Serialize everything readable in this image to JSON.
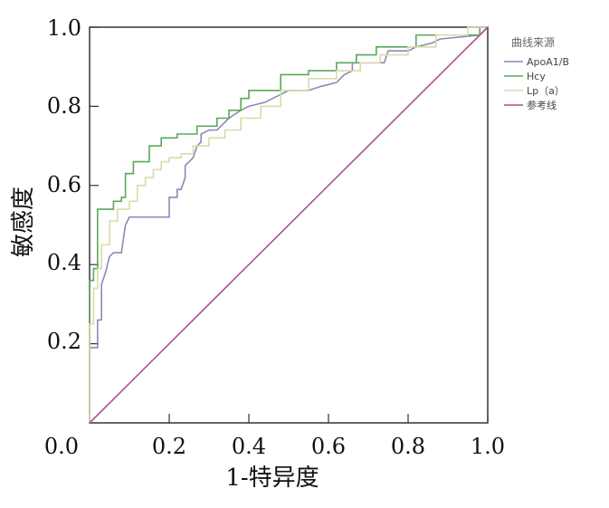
{
  "chart_data": {
    "type": "line",
    "title": "",
    "xlabel": "1-特异度",
    "ylabel": "敏感度",
    "xlim": [
      0,
      1
    ],
    "ylim": [
      0,
      1
    ],
    "x_ticks": [
      "0.0",
      "0.2",
      "0.4",
      "0.6",
      "0.8",
      "1.0"
    ],
    "y_ticks": [
      "0.2",
      "0.4",
      "0.6",
      "0.8",
      "1.0"
    ],
    "grid": false,
    "legend": {
      "title": "曲线来源",
      "placement": "right-top"
    },
    "series": [
      {
        "name": "ApoA1/B",
        "color": "#8a8ab8",
        "x": [
          0,
          0,
          0.02,
          0.02,
          0.03,
          0.03,
          0.04,
          0.05,
          0.06,
          0.08,
          0.09,
          0.1,
          0.2,
          0.2,
          0.22,
          0.22,
          0.23,
          0.24,
          0.24,
          0.25,
          0.26,
          0.27,
          0.28,
          0.28,
          0.3,
          0.32,
          0.35,
          0.38,
          0.4,
          0.44,
          0.46,
          0.48,
          0.5,
          0.55,
          0.58,
          0.62,
          0.64,
          0.66,
          0.66,
          0.74,
          0.75,
          0.8,
          0.82,
          0.86,
          0.88,
          0.98,
          1.0
        ],
        "y": [
          0,
          0.19,
          0.19,
          0.26,
          0.26,
          0.35,
          0.38,
          0.42,
          0.43,
          0.43,
          0.5,
          0.52,
          0.52,
          0.57,
          0.57,
          0.59,
          0.59,
          0.62,
          0.65,
          0.66,
          0.67,
          0.7,
          0.71,
          0.73,
          0.74,
          0.74,
          0.77,
          0.79,
          0.8,
          0.81,
          0.82,
          0.83,
          0.84,
          0.84,
          0.85,
          0.86,
          0.88,
          0.89,
          0.91,
          0.91,
          0.94,
          0.94,
          0.95,
          0.96,
          0.97,
          0.98,
          1.0
        ]
      },
      {
        "name": "Hcy",
        "color": "#5aa85a",
        "x": [
          0,
          0,
          0.01,
          0.01,
          0.02,
          0.02,
          0.03,
          0.03,
          0.06,
          0.06,
          0.08,
          0.08,
          0.09,
          0.09,
          0.11,
          0.11,
          0.15,
          0.15,
          0.18,
          0.18,
          0.22,
          0.22,
          0.27,
          0.27,
          0.32,
          0.32,
          0.35,
          0.35,
          0.38,
          0.38,
          0.4,
          0.4,
          0.48,
          0.48,
          0.55,
          0.55,
          0.62,
          0.62,
          0.67,
          0.67,
          0.72,
          0.72,
          0.82,
          0.82,
          0.86,
          0.86,
          0.98,
          0.98,
          1.0
        ],
        "y": [
          0,
          0.36,
          0.36,
          0.39,
          0.39,
          0.54,
          0.54,
          0.54,
          0.54,
          0.56,
          0.56,
          0.57,
          0.57,
          0.63,
          0.63,
          0.66,
          0.66,
          0.7,
          0.7,
          0.72,
          0.72,
          0.73,
          0.73,
          0.75,
          0.75,
          0.77,
          0.77,
          0.79,
          0.79,
          0.82,
          0.82,
          0.84,
          0.84,
          0.88,
          0.88,
          0.89,
          0.89,
          0.91,
          0.91,
          0.93,
          0.93,
          0.95,
          0.95,
          0.98,
          0.98,
          0.98,
          0.98,
          1.0,
          1.0
        ]
      },
      {
        "name": "Lp（a）",
        "color": "#d8dca8",
        "x": [
          0,
          0,
          0.01,
          0.01,
          0.02,
          0.02,
          0.03,
          0.03,
          0.05,
          0.05,
          0.07,
          0.07,
          0.1,
          0.1,
          0.12,
          0.12,
          0.14,
          0.14,
          0.16,
          0.16,
          0.18,
          0.18,
          0.2,
          0.2,
          0.23,
          0.23,
          0.26,
          0.26,
          0.3,
          0.3,
          0.34,
          0.34,
          0.38,
          0.38,
          0.43,
          0.43,
          0.48,
          0.48,
          0.55,
          0.55,
          0.62,
          0.62,
          0.68,
          0.68,
          0.73,
          0.73,
          0.8,
          0.8,
          0.87,
          0.87,
          0.95,
          0.95,
          1.0
        ],
        "y": [
          0,
          0.25,
          0.25,
          0.34,
          0.34,
          0.39,
          0.39,
          0.45,
          0.45,
          0.51,
          0.51,
          0.54,
          0.54,
          0.56,
          0.56,
          0.6,
          0.6,
          0.62,
          0.62,
          0.64,
          0.64,
          0.66,
          0.66,
          0.67,
          0.67,
          0.68,
          0.68,
          0.7,
          0.7,
          0.72,
          0.72,
          0.74,
          0.74,
          0.77,
          0.77,
          0.8,
          0.8,
          0.84,
          0.84,
          0.87,
          0.87,
          0.89,
          0.89,
          0.91,
          0.91,
          0.93,
          0.93,
          0.95,
          0.95,
          0.98,
          0.98,
          1.0,
          1.0
        ]
      },
      {
        "name": "参考线",
        "color": "#b0508f",
        "x": [
          0,
          1
        ],
        "y": [
          0,
          1
        ]
      }
    ]
  }
}
